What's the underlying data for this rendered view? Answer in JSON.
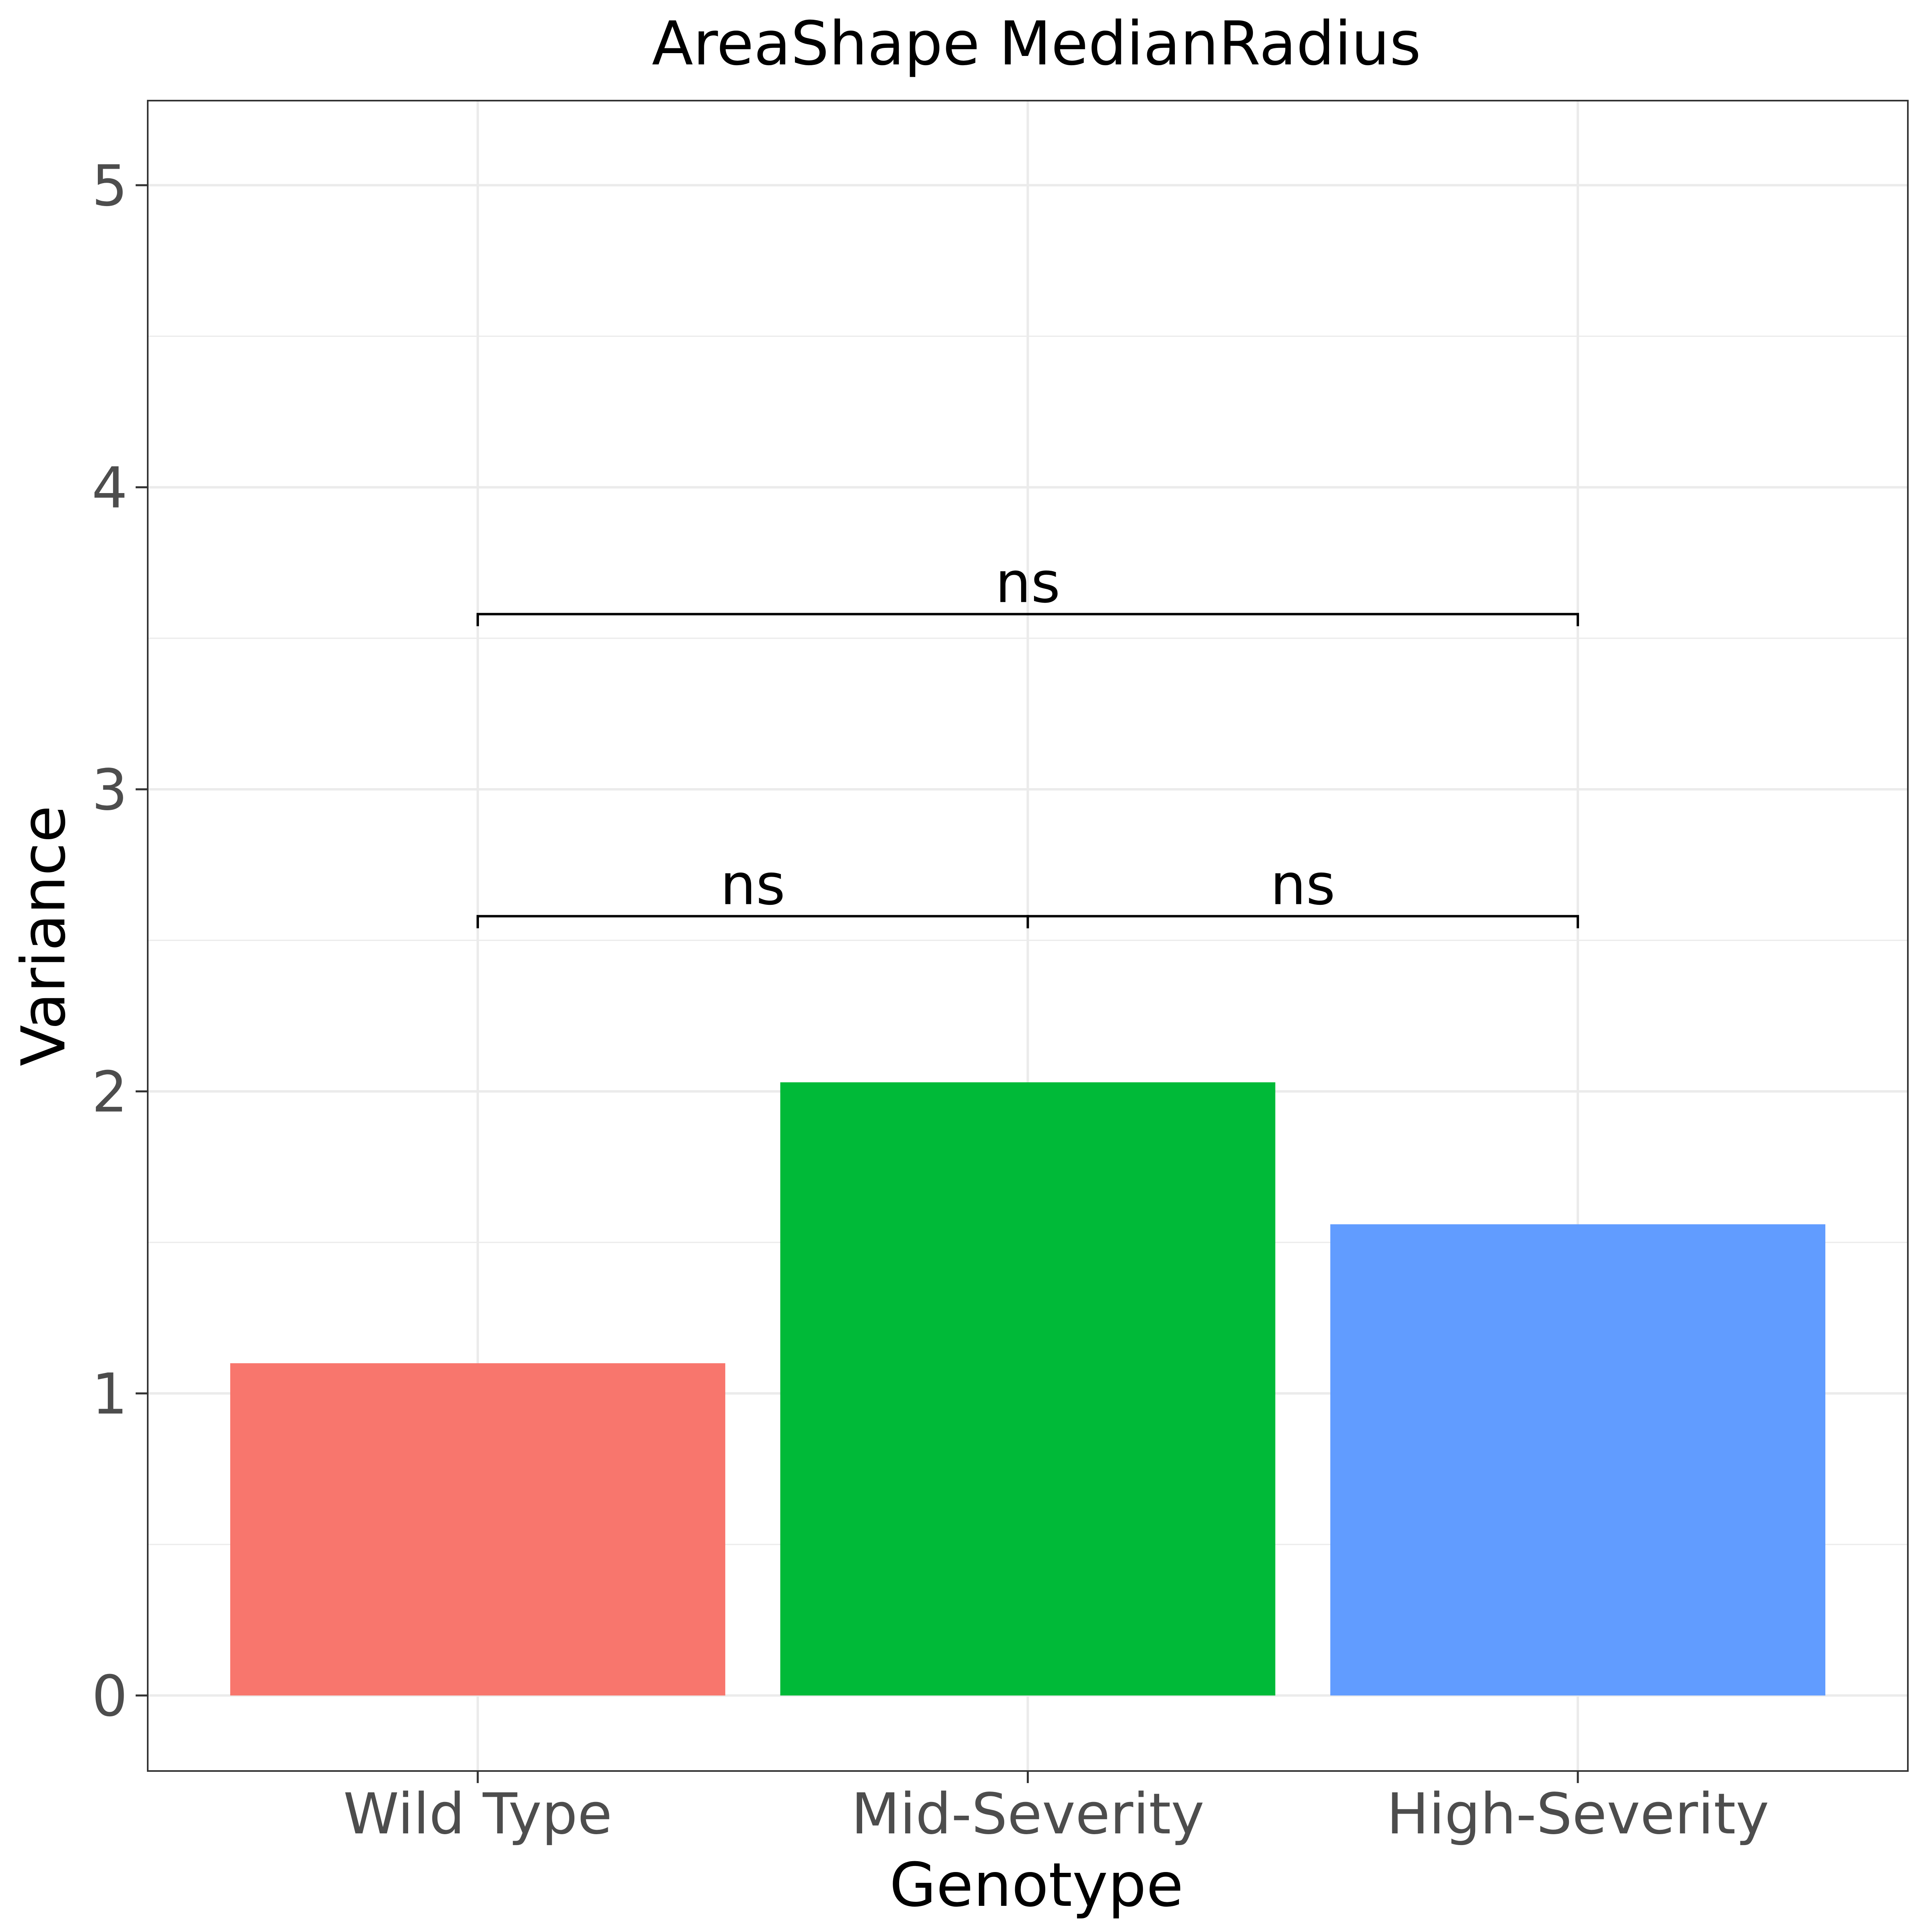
{
  "chart_data": {
    "type": "bar",
    "title": "AreaShape MedianRadius",
    "xlabel": "Genotype",
    "ylabel": "Variance",
    "categories": [
      "Wild Type",
      "Mid-Severity",
      "High-Severity"
    ],
    "values": [
      1.1,
      2.03,
      1.56
    ],
    "colors": [
      "#F8766D",
      "#00BA38",
      "#619CFF"
    ],
    "ylim": [
      -0.25,
      5.28
    ],
    "yticks": [
      0,
      1,
      2,
      3,
      4,
      5
    ],
    "grid": true,
    "legend": "none",
    "annotations": [
      {
        "from": "Wild Type",
        "to": "Mid-Severity",
        "y": 2.58,
        "label": "ns"
      },
      {
        "from": "Mid-Severity",
        "to": "High-Severity",
        "y": 2.58,
        "label": "ns"
      },
      {
        "from": "Wild Type",
        "to": "High-Severity",
        "y": 3.58,
        "label": "ns"
      }
    ]
  }
}
